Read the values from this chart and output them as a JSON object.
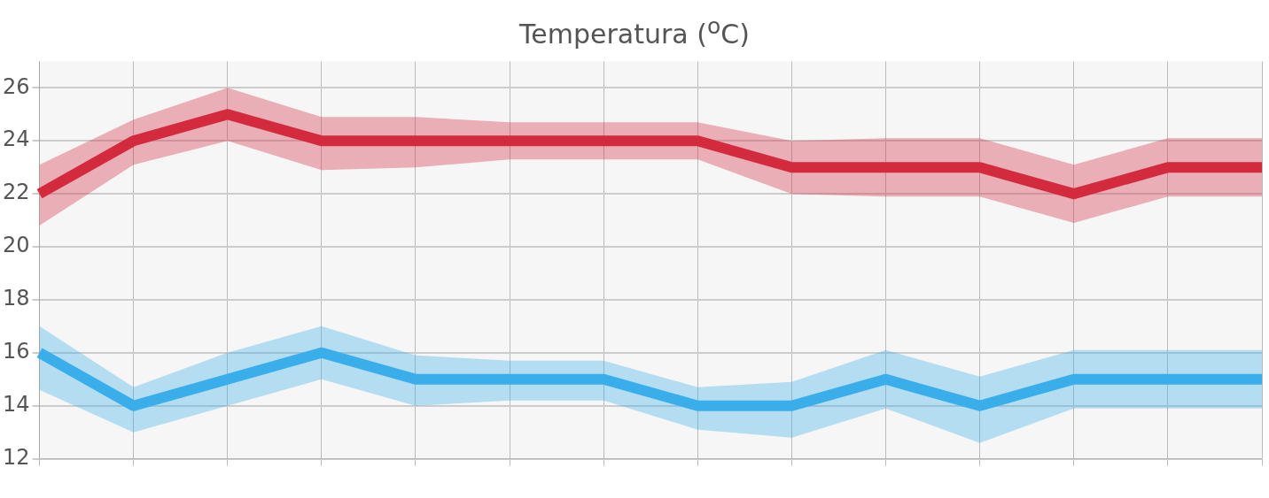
{
  "chart_data": {
    "type": "line",
    "title": "Temperatura ($^{o}$C)",
    "categories": [
      null,
      null,
      null,
      null,
      null,
      null,
      null,
      null,
      null,
      null,
      null,
      null,
      null,
      null
    ],
    "series": [
      {
        "color": "#d42a3e",
        "values": [
          22,
          24,
          25,
          24,
          24,
          24,
          24,
          24,
          23,
          23,
          23,
          22,
          23,
          23
        ],
        "upper": [
          23.1,
          24.8,
          26,
          24.9,
          24.9,
          24.7,
          24.7,
          24.7,
          24,
          24.1,
          24.1,
          23.1,
          24.1,
          24.1
        ],
        "lower": [
          20.8,
          23.1,
          24,
          22.9,
          23,
          23.3,
          23.3,
          23.3,
          22,
          21.9,
          21.9,
          20.9,
          21.9,
          21.9
        ]
      },
      {
        "color": "#3aaeea",
        "values": [
          16,
          14,
          15,
          16,
          15,
          15,
          15,
          14,
          14,
          15,
          14,
          15,
          15,
          15
        ],
        "upper": [
          17,
          14.7,
          16,
          17,
          15.9,
          15.7,
          15.7,
          14.7,
          14.9,
          16.1,
          15.1,
          16.1,
          16.1,
          16.1
        ],
        "lower": [
          14.6,
          13,
          14,
          15,
          14,
          14.2,
          14.2,
          13.1,
          12.8,
          13.9,
          12.6,
          13.9,
          13.9,
          13.9
        ]
      }
    ],
    "ylim": [
      12,
      27
    ],
    "yticks": [
      12,
      14,
      16,
      18,
      20,
      22,
      24,
      26
    ],
    "grid": true,
    "legend": false,
    "marker": "none",
    "line_style": "solid"
  }
}
